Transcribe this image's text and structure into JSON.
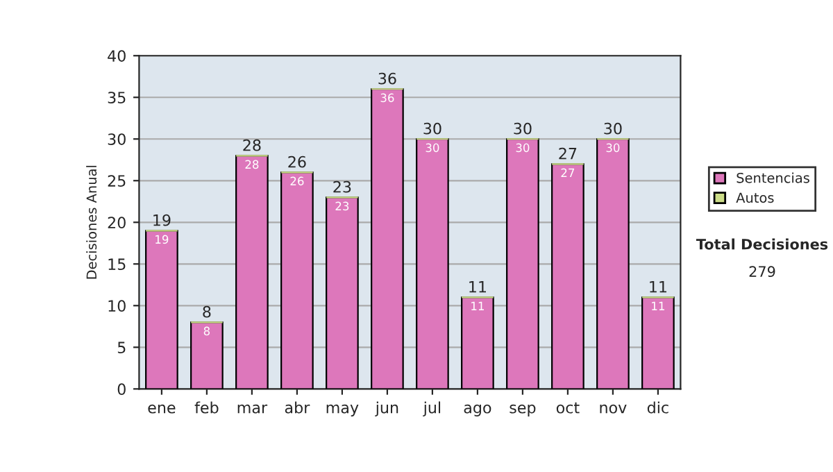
{
  "chart_data": {
    "type": "bar",
    "stacked": true,
    "ylabel": "Decisiones Anual",
    "categories": [
      "ene",
      "feb",
      "mar",
      "abr",
      "may",
      "jun",
      "jul",
      "ago",
      "sep",
      "oct",
      "nov",
      "dic"
    ],
    "series": [
      {
        "name": "Sentencias",
        "color": "#dd77bb",
        "values": [
          19,
          8,
          28,
          26,
          23,
          36,
          30,
          11,
          30,
          27,
          30,
          11
        ],
        "value_labels": [
          "19",
          "8",
          "28",
          "26",
          "23",
          "36",
          "30",
          "11",
          "30",
          "27",
          "30",
          "11"
        ]
      },
      {
        "name": "Autos",
        "color": "#ccdd88",
        "values": [
          0,
          0,
          0,
          0,
          0,
          0,
          0,
          0,
          0,
          0,
          0,
          0
        ]
      }
    ],
    "totals": [
      "19",
      "8",
      "28",
      "26",
      "23",
      "36",
      "30",
      "11",
      "30",
      "27",
      "30",
      "11"
    ],
    "ylim": [
      0,
      40
    ],
    "yticks": [
      0,
      5,
      10,
      15,
      20,
      25,
      30,
      35,
      40
    ],
    "grid": "y",
    "legend": "right",
    "annotations": [
      "Total Decisiones",
      "279"
    ]
  }
}
